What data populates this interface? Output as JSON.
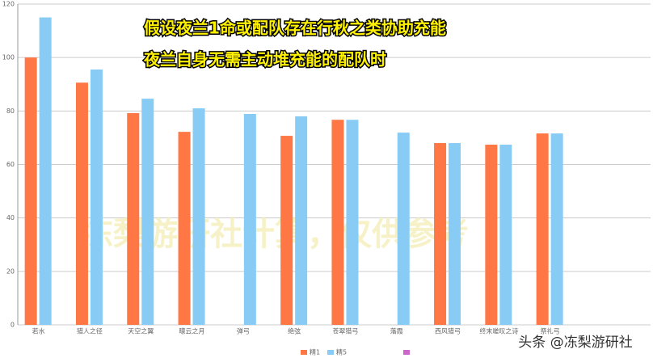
{
  "chart_data": {
    "type": "bar",
    "annotations": [
      "假设夜兰1命或配队存在行秋之类协助充能",
      "夜兰自身无需主动堆充能的配队时"
    ],
    "watermark": "冻梨游研社计算，仅供参考",
    "footer": "头条 @冻梨游研社",
    "categories": [
      "若水",
      "猎人之径",
      "天空之翼",
      "曚云之月",
      "弹弓",
      "绝弦",
      "苍翠猎弓",
      "落霞",
      "西风猎弓",
      "终末嗟叹之诗",
      "祭礼弓"
    ],
    "series": [
      {
        "name": "精1",
        "color": "#ff7744",
        "values": [
          100,
          90.6,
          79.2,
          72.2,
          null,
          70.7,
          76.7,
          null,
          68,
          67.4,
          71.6
        ]
      },
      {
        "name": "精5",
        "color": "#88ccf5",
        "values": [
          115,
          95.5,
          84.6,
          81,
          78.9,
          78,
          76.7,
          71.9,
          68,
          67.4,
          71.6
        ]
      }
    ],
    "ylim": [
      0,
      120
    ],
    "yticks": [
      0,
      20,
      40,
      60,
      80,
      100,
      120
    ],
    "grid": true
  }
}
